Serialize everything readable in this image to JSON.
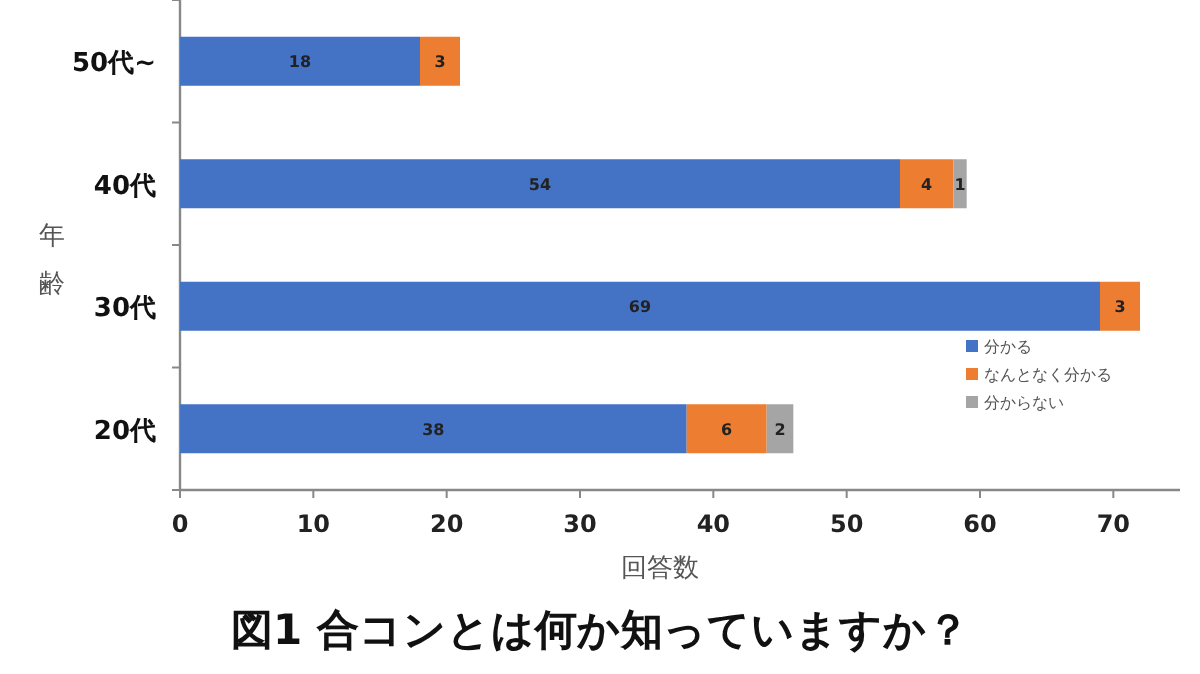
{
  "chart_data": {
    "type": "bar",
    "orientation": "horizontal",
    "stacked": true,
    "title": "図1 合コンとは何か知っていますか？",
    "xlabel": "回答数",
    "ylabel": "年齢",
    "categories": [
      "50代~",
      "40代",
      "30代",
      "20代"
    ],
    "series": [
      {
        "name": "分かる",
        "color": "#4472c4",
        "values": [
          18,
          54,
          69,
          38
        ]
      },
      {
        "name": "なんとなく分かる",
        "color": "#ed7d31",
        "values": [
          3,
          4,
          3,
          6
        ]
      },
      {
        "name": "分からない",
        "color": "#a5a5a5",
        "values": [
          null,
          1,
          null,
          2
        ]
      }
    ],
    "xlim": [
      0,
      75
    ],
    "xticks": [
      0,
      10,
      20,
      30,
      40,
      50,
      60,
      70
    ],
    "data_labels": true,
    "legend": "right",
    "grid": false
  }
}
